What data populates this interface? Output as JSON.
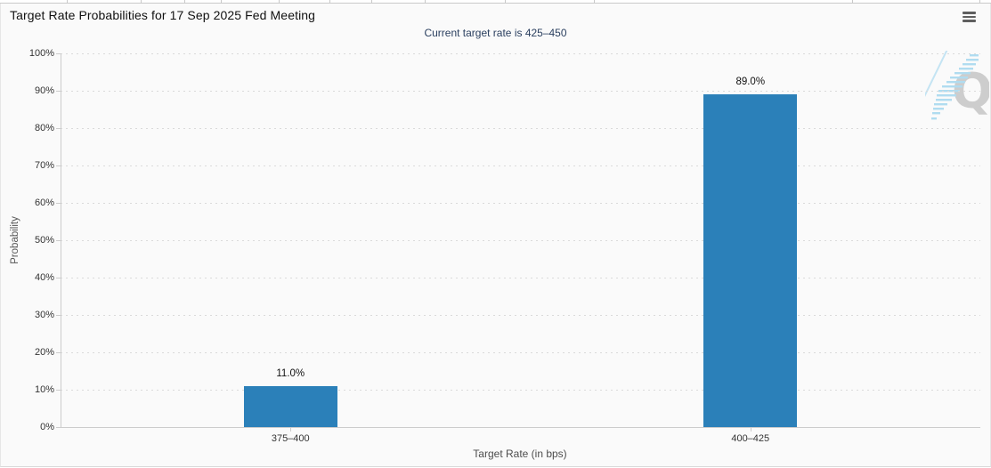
{
  "header": {
    "title": "Target Rate Probabilities for 17 Sep 2025 Fed Meeting",
    "menu_icon": "hamburger-icon"
  },
  "chart_data": {
    "type": "bar",
    "title": "Target Rate Probabilities for 17 Sep 2025 Fed Meeting",
    "subtitle": "Current target rate is 425–450",
    "categories": [
      "375–400",
      "400–425"
    ],
    "values": [
      11.0,
      89.0
    ],
    "value_labels": [
      "11.0%",
      "89.0%"
    ],
    "xlabel": "Target Rate (in bps)",
    "ylabel": "Probability",
    "ylim": [
      0,
      100
    ],
    "ytick_step": 10,
    "ytick_labels": [
      "0%",
      "10%",
      "20%",
      "30%",
      "40%",
      "50%",
      "60%",
      "70%",
      "80%",
      "90%",
      "100%"
    ],
    "grid": "horizontal dotted",
    "legend": "none",
    "bar_color": "#2b80b9"
  },
  "watermark": {
    "letter": "Q",
    "color": "#c9c9c9",
    "streak_color": "#a9d9ef"
  },
  "colors": {
    "panel_bg": "#fafafa",
    "subtitle": "#2a3f5f",
    "grid": "#dadada",
    "axis": "#cccccc",
    "bar": "#2b80b9"
  }
}
